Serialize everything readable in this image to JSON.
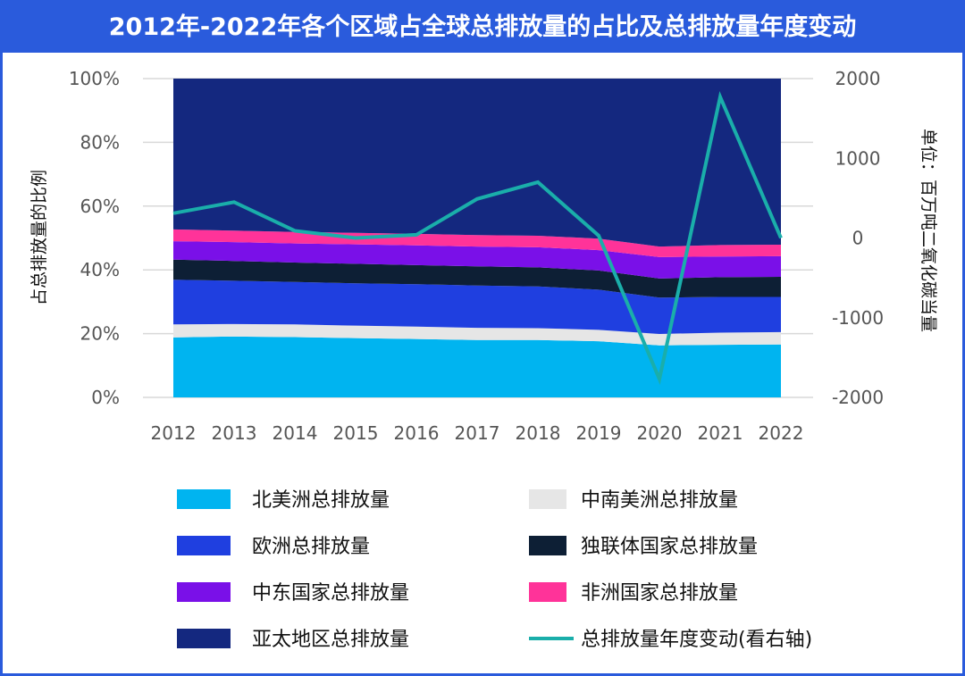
{
  "chart_data": {
    "type": "area",
    "title": "2012年-2022年各个区域占全球总排放量的占比及总排放量年度变动",
    "ylabel": "占总排放量的比例",
    "y2label": "单位：百万吨二氧化碳当量",
    "x": [
      "2012",
      "2013",
      "2014",
      "2015",
      "2016",
      "2017",
      "2018",
      "2019",
      "2020",
      "2021",
      "2022"
    ],
    "ylim": [
      0,
      100
    ],
    "y_ticks": [
      "0%",
      "20%",
      "40%",
      "60%",
      "80%",
      "100%"
    ],
    "y2lim": [
      -2000,
      2000
    ],
    "y2_ticks": [
      "-2000",
      "-1000",
      "0",
      "1000",
      "2000"
    ],
    "grid": true,
    "legend_position": "bottom",
    "series": [
      {
        "name": "北美洲总排放量",
        "color": "#00b4f0",
        "values": [
          18.8,
          19.1,
          18.9,
          18.6,
          18.3,
          18.0,
          18.0,
          17.6,
          16.3,
          16.5,
          16.6
        ]
      },
      {
        "name": "中南美洲总排放量",
        "color": "#e6e6e6",
        "values": [
          4.1,
          3.9,
          4.0,
          3.9,
          3.9,
          3.8,
          3.7,
          3.6,
          3.6,
          3.8,
          3.9
        ]
      },
      {
        "name": "欧洲总排放量",
        "color": "#1f3fe0",
        "values": [
          14.0,
          13.6,
          13.3,
          13.3,
          13.3,
          13.3,
          13.1,
          12.6,
          11.4,
          11.2,
          11.0
        ]
      },
      {
        "name": "独联体国家总排放量",
        "color": "#0d1f35",
        "values": [
          6.3,
          6.2,
          6.1,
          6.1,
          6.0,
          6.0,
          6.0,
          6.0,
          6.0,
          6.2,
          6.3
        ]
      },
      {
        "name": "中东国家总排放量",
        "color": "#7a10e8",
        "values": [
          5.8,
          5.9,
          6.0,
          6.1,
          6.2,
          6.2,
          6.3,
          6.4,
          6.7,
          6.5,
          6.5
        ]
      },
      {
        "name": "非洲国家总排放量",
        "color": "#ff3399",
        "values": [
          3.7,
          3.6,
          3.6,
          3.6,
          3.6,
          3.6,
          3.6,
          3.6,
          3.3,
          3.6,
          3.6
        ]
      },
      {
        "name": "亚太地区总排放量",
        "color": "#14287f",
        "values": [
          47.3,
          47.7,
          48.1,
          48.4,
          48.7,
          49.1,
          49.3,
          50.2,
          52.7,
          52.2,
          52.1
        ]
      }
    ],
    "line_series": {
      "name": "总排放量年度变动(看右轴)",
      "color": "#1aaeaa",
      "axis": "right",
      "values": [
        310,
        450,
        90,
        0,
        40,
        490,
        700,
        30,
        -1770,
        1770,
        0
      ]
    }
  }
}
